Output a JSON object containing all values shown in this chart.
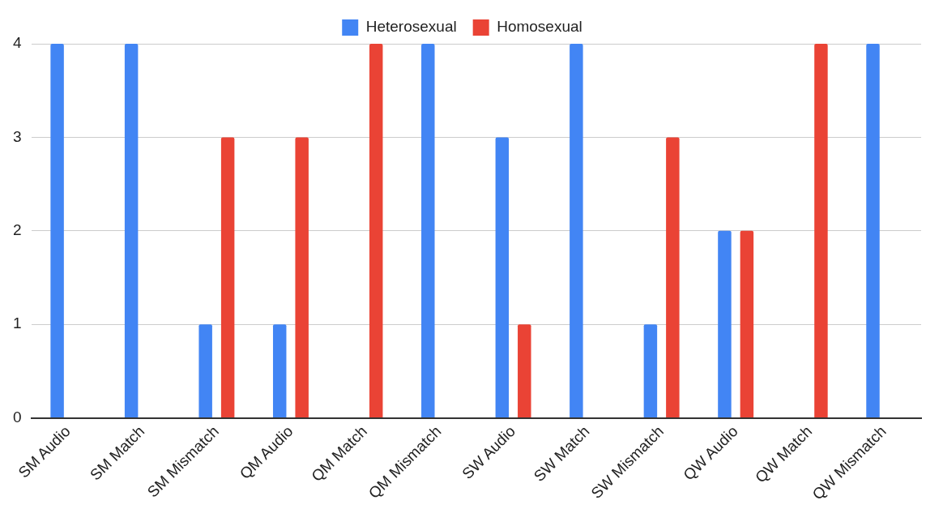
{
  "chart_data": {
    "type": "bar",
    "categories": [
      "SM Audio",
      "SM Match",
      "SM Mismatch",
      "QM Audio",
      "QM Match",
      "QM Mismatch",
      "SW Audio",
      "SW Match",
      "SW Mismatch",
      "QW Audio",
      "QW Match",
      "QW Mismatch"
    ],
    "series": [
      {
        "name": "Heterosexual",
        "color": "#4285f4",
        "values": [
          4,
          4,
          1,
          1,
          0,
          4,
          3,
          4,
          1,
          2,
          0,
          4
        ]
      },
      {
        "name": "Homosexual",
        "color": "#ea4335",
        "values": [
          0,
          0,
          3,
          3,
          4,
          0,
          1,
          0,
          3,
          2,
          4,
          0
        ]
      }
    ],
    "ylim": [
      0,
      4
    ],
    "yticks": [
      0,
      1,
      2,
      3,
      4
    ],
    "grid": "y",
    "legend": "top"
  }
}
